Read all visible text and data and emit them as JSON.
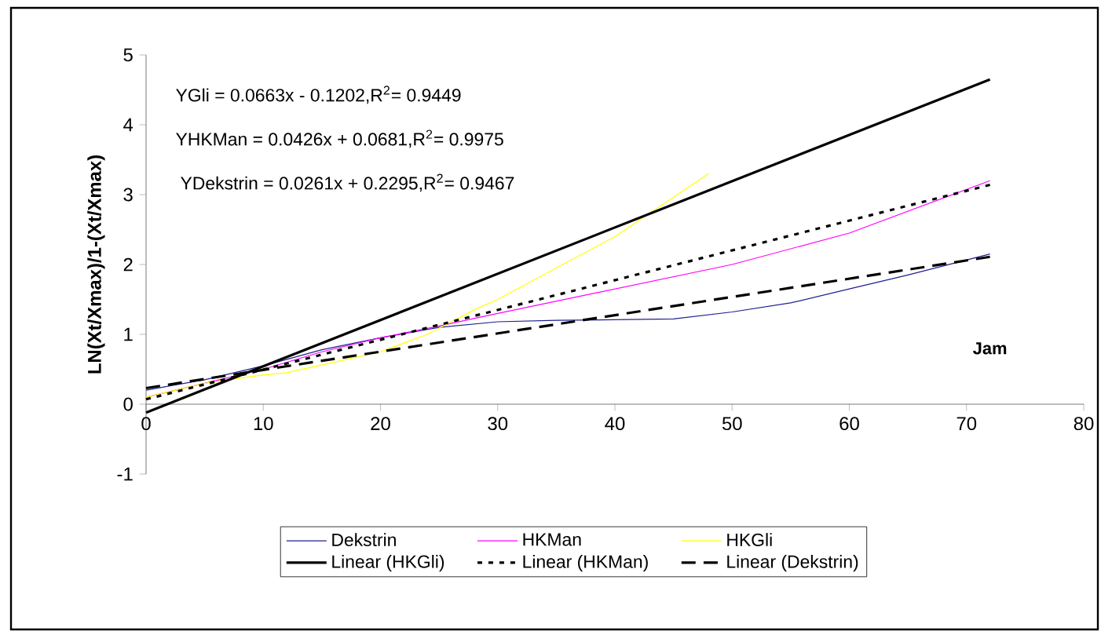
{
  "chart_data": {
    "type": "line",
    "xlabel": "Jam",
    "ylabel": "LN(Xt/Xmax)/1-(Xt/Xmax)",
    "xlim": [
      0,
      80
    ],
    "ylim": [
      -1,
      5
    ],
    "xticks": [
      0,
      10,
      20,
      30,
      40,
      50,
      60,
      70,
      80
    ],
    "yticks": [
      -1,
      0,
      1,
      2,
      3,
      4,
      5
    ],
    "legend": "bottom",
    "annotations": [
      "YGli = 0.0663x - 0.1202,R$^{2}$= 0.9449",
      "YHKMan = 0.0426x + 0.0681,R$^{2}$= 0.9975",
      "YDekstrin = 0.0261x + 0.2295,R$^{2}$= 0.9467"
    ],
    "series": [
      {
        "name": "Dekstrin",
        "color": "#1f1f8f",
        "x": [
          0,
          5,
          10,
          15,
          20,
          25,
          30,
          35,
          40,
          45,
          50,
          55,
          60,
          65,
          72
        ],
        "values": [
          0.2,
          0.35,
          0.55,
          0.78,
          0.95,
          1.1,
          1.18,
          1.2,
          1.21,
          1.22,
          1.32,
          1.45,
          1.65,
          1.85,
          2.15
        ]
      },
      {
        "name": "HKMan",
        "color": "#ff00ff",
        "x": [
          0,
          5,
          10,
          15,
          20,
          25,
          30,
          40,
          50,
          60,
          72
        ],
        "values": [
          0.1,
          0.3,
          0.5,
          0.75,
          0.95,
          1.12,
          1.3,
          1.65,
          2.0,
          2.45,
          3.2
        ]
      },
      {
        "name": "HKGli",
        "color": "#ffff00",
        "x": [
          0,
          5,
          10,
          12,
          16,
          20,
          24,
          28,
          30,
          35,
          40,
          44,
          48
        ],
        "values": [
          0.1,
          0.3,
          0.42,
          0.45,
          0.6,
          0.75,
          1.0,
          1.35,
          1.5,
          1.95,
          2.4,
          2.85,
          3.3
        ]
      },
      {
        "name": "Linear (HKGli)",
        "color": "#000000",
        "line_style": "solid",
        "x": [
          0,
          72
        ],
        "values": [
          -0.12,
          4.65
        ]
      },
      {
        "name": "Linear (HKMan)",
        "color": "#000000",
        "line_style": "dotted",
        "x": [
          0,
          72
        ],
        "values": [
          0.07,
          3.14
        ]
      },
      {
        "name": "Linear (Dekstrin)",
        "color": "#000000",
        "line_style": "dashed",
        "x": [
          0,
          72
        ],
        "values": [
          0.23,
          2.11
        ]
      }
    ]
  }
}
